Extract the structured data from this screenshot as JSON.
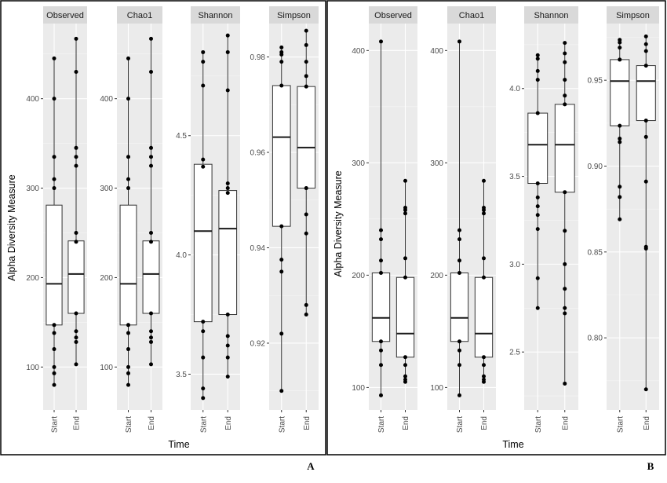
{
  "figures": [
    {
      "tag": "A",
      "ylabel": "Alpha Diversity Measure",
      "xlabel": "Time"
    },
    {
      "tag": "B",
      "ylabel": "Alpha Diversity Measure",
      "xlabel": "Time"
    }
  ],
  "chart_data": [
    {
      "type": "box",
      "title": "",
      "xlabel": "Time",
      "ylabel": "Alpha Diversity Measure",
      "categories": [
        "Start",
        "End"
      ],
      "facets": [
        {
          "name": "Observed",
          "ylim": [
            52,
            484
          ],
          "yticks": [
            100,
            200,
            300,
            400
          ],
          "groups": [
            {
              "x": "Start",
              "min": 80,
              "q1": 147,
              "median": 193,
              "q3": 281,
              "max": 445,
              "points": [
                80,
                93,
                100,
                120,
                138,
                147,
                300,
                310,
                335,
                400,
                445
              ]
            },
            {
              "x": "End",
              "min": 103,
              "q1": 160,
              "median": 204,
              "q3": 241,
              "max": 467,
              "points": [
                103,
                128,
                133,
                140,
                160,
                240,
                250,
                325,
                335,
                345,
                430,
                467
              ]
            }
          ]
        },
        {
          "name": "Chao1",
          "ylim": [
            52,
            484
          ],
          "yticks": [
            100,
            200,
            300,
            400
          ],
          "groups": [
            {
              "x": "Start",
              "min": 80,
              "q1": 147,
              "median": 193,
              "q3": 281,
              "max": 445,
              "points": [
                80,
                93,
                100,
                120,
                138,
                147,
                300,
                310,
                335,
                400,
                445
              ]
            },
            {
              "x": "End",
              "min": 103,
              "q1": 160,
              "median": 204,
              "q3": 241,
              "max": 467,
              "points": [
                103,
                128,
                133,
                140,
                160,
                240,
                250,
                325,
                335,
                345,
                430,
                467
              ]
            }
          ]
        },
        {
          "name": "Shannon",
          "ylim": [
            3.35,
            4.97
          ],
          "yticks": [
            3.5,
            4.0,
            4.5
          ],
          "groups": [
            {
              "x": "Start",
              "min": 3.4,
              "q1": 3.72,
              "median": 4.1,
              "q3": 4.38,
              "max": 4.85,
              "points": [
                3.4,
                3.44,
                3.57,
                3.68,
                3.72,
                4.37,
                4.4,
                4.71,
                4.81,
                4.85
              ]
            },
            {
              "x": "End",
              "min": 3.49,
              "q1": 3.75,
              "median": 4.11,
              "q3": 4.27,
              "max": 4.92,
              "points": [
                3.49,
                3.57,
                3.62,
                3.66,
                3.75,
                4.26,
                4.28,
                4.3,
                4.69,
                4.85,
                4.92
              ]
            }
          ]
        },
        {
          "name": "Simpson",
          "ylim": [
            0.906,
            0.987
          ],
          "yticks": [
            0.92,
            0.94,
            0.96,
            0.98
          ],
          "groups": [
            {
              "x": "Start",
              "min": 0.91,
              "q1": 0.9445,
              "median": 0.9632,
              "q3": 0.974,
              "max": 0.982,
              "points": [
                0.91,
                0.922,
                0.935,
                0.9375,
                0.9445,
                0.974,
                0.979,
                0.9805,
                0.981,
                0.982
              ]
            },
            {
              "x": "End",
              "min": 0.926,
              "q1": 0.9525,
              "median": 0.961,
              "q3": 0.9738,
              "max": 0.9855,
              "points": [
                0.926,
                0.928,
                0.943,
                0.947,
                0.9525,
                0.9738,
                0.976,
                0.979,
                0.9825,
                0.9855
              ]
            }
          ]
        }
      ]
    },
    {
      "type": "box",
      "title": "",
      "xlabel": "Time",
      "ylabel": "Alpha Diversity Measure",
      "categories": [
        "Start",
        "End"
      ],
      "facets": [
        {
          "name": "Observed",
          "ylim": [
            80,
            424
          ],
          "yticks": [
            100,
            200,
            300,
            400
          ],
          "groups": [
            {
              "x": "Start",
              "min": 93,
              "q1": 141,
              "median": 162,
              "q3": 202,
              "max": 408,
              "points": [
                93,
                120,
                133,
                141,
                202,
                213,
                232,
                240,
                408
              ]
            },
            {
              "x": "End",
              "min": 105,
              "q1": 127,
              "median": 148,
              "q3": 198,
              "max": 284,
              "points": [
                105,
                107,
                110,
                120,
                127,
                198,
                215,
                255,
                258,
                260,
                284
              ]
            }
          ]
        },
        {
          "name": "Chao1",
          "ylim": [
            80,
            424
          ],
          "yticks": [
            100,
            200,
            300,
            400
          ],
          "groups": [
            {
              "x": "Start",
              "min": 93,
              "q1": 141,
              "median": 162,
              "q3": 202,
              "max": 408,
              "points": [
                93,
                120,
                133,
                141,
                202,
                213,
                232,
                240,
                408
              ]
            },
            {
              "x": "End",
              "min": 105,
              "q1": 127,
              "median": 148,
              "q3": 198,
              "max": 284,
              "points": [
                105,
                107,
                110,
                120,
                127,
                198,
                215,
                255,
                258,
                260,
                284
              ]
            }
          ]
        },
        {
          "name": "Shannon",
          "ylim": [
            2.17,
            4.37
          ],
          "yticks": [
            2.5,
            3.0,
            3.5,
            4.0
          ],
          "groups": [
            {
              "x": "Start",
              "min": 2.75,
              "q1": 3.46,
              "median": 3.68,
              "q3": 3.86,
              "max": 4.19,
              "points": [
                2.75,
                2.92,
                3.2,
                3.28,
                3.33,
                3.38,
                3.46,
                3.86,
                4.05,
                4.1,
                4.17,
                4.19
              ]
            },
            {
              "x": "End",
              "min": 2.32,
              "q1": 3.41,
              "median": 3.68,
              "q3": 3.91,
              "max": 4.26,
              "points": [
                2.32,
                2.72,
                2.75,
                2.86,
                3.0,
                3.19,
                3.41,
                3.91,
                3.96,
                4.05,
                4.15,
                4.2,
                4.26
              ]
            }
          ]
        },
        {
          "name": "Simpson",
          "ylim": [
            0.758,
            0.983
          ],
          "yticks": [
            0.8,
            0.85,
            0.9,
            0.95
          ],
          "groups": [
            {
              "x": "Start",
              "min": 0.869,
              "q1": 0.9235,
              "median": 0.9495,
              "q3": 0.962,
              "max": 0.9735,
              "points": [
                0.869,
                0.882,
                0.888,
                0.914,
                0.916,
                0.9235,
                0.962,
                0.969,
                0.972,
                0.9735
              ]
            },
            {
              "x": "End",
              "min": 0.77,
              "q1": 0.9265,
              "median": 0.9495,
              "q3": 0.9585,
              "max": 0.9755,
              "points": [
                0.77,
                0.852,
                0.853,
                0.891,
                0.917,
                0.9265,
                0.9585,
                0.967,
                0.971,
                0.9755
              ]
            }
          ]
        }
      ]
    }
  ]
}
